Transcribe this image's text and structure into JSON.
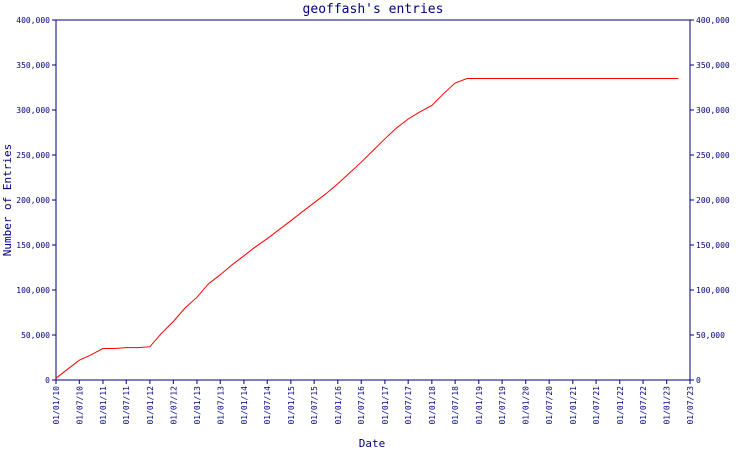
{
  "chart_data": {
    "type": "line",
    "title": "geoffash's entries",
    "xlabel": "Date",
    "ylabel": "Number of Entries",
    "ylim": [
      0,
      400000
    ],
    "y_ticks": [
      "0",
      "50,000",
      "100,000",
      "150,000",
      "200,000",
      "250,000",
      "300,000",
      "350,000",
      "400,000"
    ],
    "y_tick_values": [
      0,
      50000,
      100000,
      150000,
      200000,
      250000,
      300000,
      350000,
      400000
    ],
    "x_ticks": [
      "01/01/10",
      "01/07/10",
      "01/01/11",
      "01/07/11",
      "01/01/12",
      "01/07/12",
      "01/01/13",
      "01/07/13",
      "01/01/14",
      "01/07/14",
      "01/01/15",
      "01/07/15",
      "01/01/16",
      "01/07/16",
      "01/01/17",
      "01/07/17",
      "01/01/18",
      "01/07/18",
      "01/01/19",
      "01/07/19",
      "01/01/20",
      "01/07/20",
      "01/01/21",
      "01/07/21",
      "01/01/22",
      "01/07/22",
      "01/01/23",
      "01/07/23"
    ],
    "xlim": [
      "2010-01-01",
      "2023-07-01"
    ],
    "grid": false,
    "line_color": "#ff0000",
    "axis_color": "#000080",
    "series": [
      {
        "x": [
          "2010-01-01",
          "2010-04-01",
          "2010-07-01",
          "2010-10-01",
          "2011-01-01",
          "2011-04-01",
          "2011-07-01",
          "2011-10-01",
          "2012-01-01",
          "2012-04-01",
          "2012-07-01",
          "2012-10-01",
          "2013-01-01",
          "2013-04-01",
          "2013-07-01",
          "2013-10-01",
          "2014-01-01",
          "2014-04-01",
          "2014-07-01",
          "2014-10-01",
          "2015-01-01",
          "2015-04-01",
          "2015-07-01",
          "2015-10-01",
          "2016-01-01",
          "2016-04-01",
          "2016-07-01",
          "2016-10-01",
          "2017-01-01",
          "2017-04-01",
          "2017-07-01",
          "2017-10-01",
          "2018-01-01",
          "2018-04-01",
          "2018-07-01",
          "2018-10-01",
          "2019-01-01",
          "2019-04-01",
          "2019-07-01",
          "2019-10-01",
          "2020-01-01",
          "2021-01-01",
          "2022-01-01",
          "2023-01-01",
          "2023-04-01"
        ],
        "values": [
          2000,
          12000,
          22000,
          28000,
          35000,
          35000,
          36000,
          36000,
          37000,
          52000,
          65000,
          80000,
          92000,
          107000,
          117000,
          128000,
          138000,
          148000,
          157000,
          167000,
          177000,
          187000,
          197000,
          207000,
          218000,
          230000,
          242000,
          255000,
          268000,
          280000,
          290000,
          298000,
          305000,
          318000,
          330000,
          335000,
          335000,
          335000,
          335000,
          335000,
          335000,
          335000,
          335000,
          335000,
          335000
        ]
      }
    ]
  }
}
